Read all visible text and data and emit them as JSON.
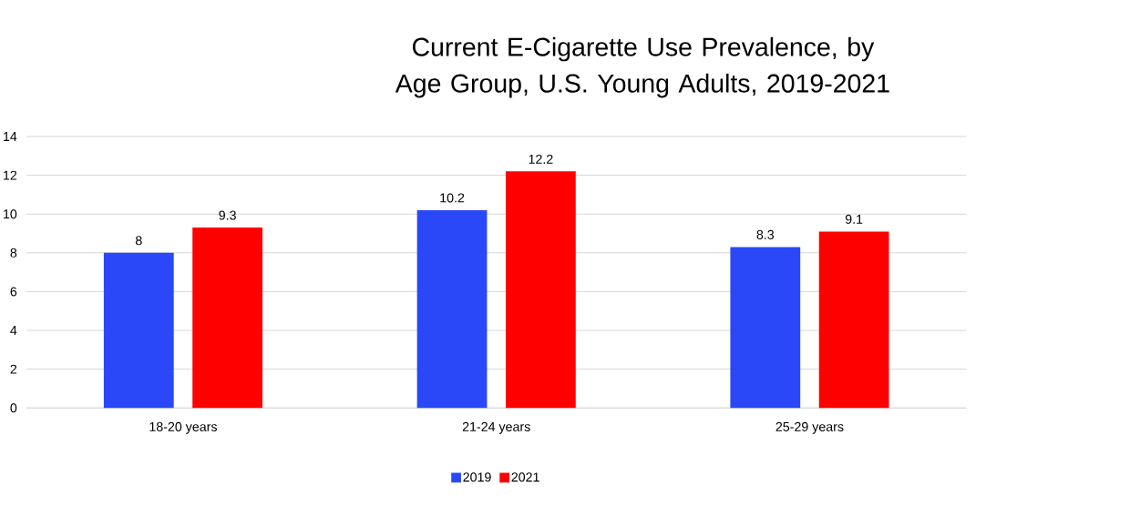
{
  "chart_data": {
    "type": "bar",
    "title": "Current E-Cigarette Use Prevalence, by Age Group, U.S. Young Adults, 2019-2021",
    "categories": [
      "18-20 years",
      "21-24 years",
      "25-29 years"
    ],
    "series": [
      {
        "name": "2019",
        "color": "#2a48f8",
        "values": [
          8,
          10.2,
          8.3
        ]
      },
      {
        "name": "2021",
        "color": "#ff0000",
        "values": [
          9.3,
          12.2,
          9.1
        ]
      }
    ],
    "ylim": [
      0,
      14
    ],
    "yticks": [
      0,
      2,
      4,
      6,
      8,
      10,
      12,
      14
    ],
    "grid": "y",
    "legend": "bottom",
    "data_labels": true
  }
}
